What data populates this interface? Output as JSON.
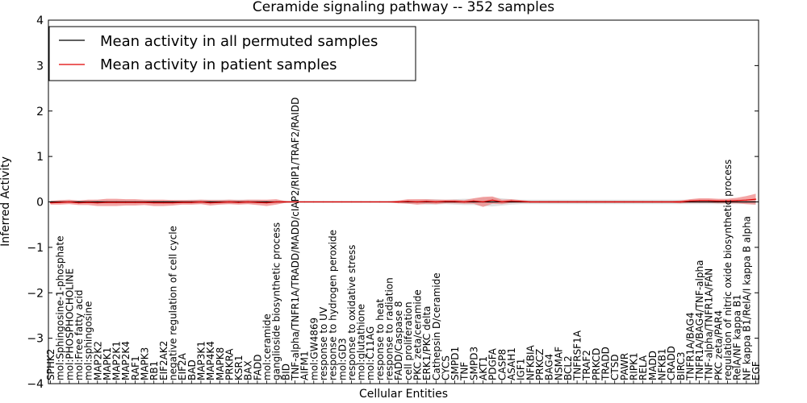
{
  "chart_data": {
    "type": "line",
    "title": "Ceramide signaling pathway -- 352 samples",
    "xlabel": "Cellular Entities",
    "ylabel": "Inferred Activity",
    "ylim": [
      -4,
      4
    ],
    "yticks": [
      -4,
      -3,
      -2,
      -1,
      0,
      1,
      2,
      3,
      4
    ],
    "grid": false,
    "legend_position": "top-left",
    "categories": [
      "SPHK2",
      "mol:Sphingosine-1-phosphate",
      "mol:PHOSPHOCHOLINE",
      "mol:Free fatty acid",
      "mol:sphingosine",
      "MAP2K2",
      "MAPK1",
      "MAP2K1",
      "MAP2K4",
      "RAF1",
      "MAPK3",
      "RB1",
      "EIF2AK2",
      "negative regulation of cell cycle",
      "EIF2A",
      "BAD",
      "MAP3K1",
      "MAP4K4",
      "MAPK8",
      "PRKRA",
      "KSR1",
      "BAX",
      "FADD",
      "mol:ceramide",
      "ganglioside biosynthetic process",
      "BID",
      "TNF-alpha/TNFR1A/TRADD/MADD/cIAP2/RIP1/TRAF2/RAIDD",
      "AIFM1",
      "mol:GW4869",
      "response to UV",
      "response to hydrogen peroxide",
      "mol:GD3",
      "response to oxidative stress",
      "mol:glutathione",
      "mol:C11AG",
      "response to heat",
      "response to radiation",
      "FADD/Caspase 8",
      "cell proliferation",
      "PKC zeta/ceramide",
      "ERK1/PKC delta",
      "Cathepsin D/ceramide",
      "CYCS",
      "SMPD1",
      "TNF",
      "SMPD3",
      "AKT1",
      "PDGFA",
      "CASP8",
      "ASAH1",
      "IGF1",
      "NFKBIA",
      "PRKCZ",
      "BAG4",
      "NSMAF",
      "BCL2",
      "TNFRSF1A",
      "TRAF2",
      "PRKCD",
      "TRADD",
      "CTSD",
      "PAWR",
      "RIPK1",
      "RELA",
      "MADD",
      "NFKB1",
      "CRADD",
      "BIRC3",
      "TNFR1A/BAG4",
      "TNFR1A/BAG4/TNF-alpha",
      "TNF-alpha/TNFR1A/FAN",
      "PKC zeta/PAR4",
      "regulation of nitric oxide biosynthetic process",
      "RelA/NF kappa B1",
      "NF kappa B1/RelA/I kappa B alpha",
      "EGF"
    ],
    "series": [
      {
        "name": "Mean activity in all permuted samples",
        "color": "#000000",
        "band_color": "#c8c8c8",
        "values": [
          0,
          0,
          0,
          0,
          0,
          0,
          0,
          0,
          0,
          0,
          0,
          0,
          0,
          0,
          0,
          0,
          0,
          0,
          0,
          0,
          0,
          0,
          0,
          0,
          0,
          0,
          0,
          0,
          0,
          0,
          0,
          0,
          0,
          0,
          0,
          0,
          0,
          0,
          0,
          0,
          0,
          0,
          0,
          0,
          0,
          0,
          0,
          0,
          0,
          0,
          0,
          0,
          0,
          0,
          0,
          0,
          0,
          0,
          0,
          0,
          0,
          0,
          0,
          0,
          0,
          0,
          0,
          0,
          0,
          0,
          0,
          0,
          0,
          0,
          0,
          0
        ],
        "band": [
          0.03,
          0.03,
          0.03,
          0.03,
          0.04,
          0.05,
          0.05,
          0.05,
          0.05,
          0.05,
          0.04,
          0.04,
          0.04,
          0.04,
          0.04,
          0.05,
          0.05,
          0.05,
          0.05,
          0.05,
          0.05,
          0.05,
          0.05,
          0.04,
          0.04,
          0.02,
          0.01,
          0.01,
          0.01,
          0.01,
          0.01,
          0.01,
          0.01,
          0.01,
          0.01,
          0.01,
          0.01,
          0.02,
          0.04,
          0.05,
          0.06,
          0.06,
          0.05,
          0.06,
          0.07,
          0.07,
          0.09,
          0.1,
          0.08,
          0.06,
          0.05,
          0.05,
          0.05,
          0.05,
          0.05,
          0.05,
          0.05,
          0.05,
          0.05,
          0.05,
          0.05,
          0.05,
          0.05,
          0.05,
          0.05,
          0.05,
          0.05,
          0.05,
          0.05,
          0.05,
          0.05,
          0.05,
          0.05,
          0.05,
          0.05,
          0.06
        ]
      },
      {
        "name": "Mean activity in patient samples",
        "color": "#e00000",
        "band_color": "#f08080",
        "values": [
          -0.02,
          -0.01,
          0.0,
          -0.02,
          -0.01,
          -0.02,
          -0.01,
          -0.01,
          -0.01,
          -0.01,
          -0.01,
          -0.02,
          -0.02,
          -0.02,
          -0.01,
          -0.01,
          0.0,
          -0.02,
          -0.01,
          0.0,
          -0.01,
          0.0,
          -0.01,
          -0.02,
          0.0,
          0.0,
          0.0,
          0.0,
          0.0,
          0.0,
          0.0,
          0.0,
          0.0,
          0.0,
          0.0,
          0.0,
          0.0,
          0.0,
          0.01,
          0.0,
          0.01,
          0.0,
          0.01,
          0.01,
          0.0,
          0.02,
          0.0,
          0.04,
          0.0,
          0.02,
          0.01,
          0.0,
          0.0,
          0.0,
          0.0,
          0.0,
          0.0,
          0.0,
          0.0,
          0.0,
          0.0,
          0.0,
          0.0,
          0.0,
          0.0,
          0.0,
          0.0,
          0.0,
          0.02,
          0.03,
          0.03,
          0.02,
          0.02,
          0.03,
          0.04,
          0.06
        ],
        "band": [
          0.04,
          0.05,
          0.05,
          0.05,
          0.06,
          0.07,
          0.08,
          0.08,
          0.07,
          0.07,
          0.06,
          0.07,
          0.07,
          0.06,
          0.05,
          0.05,
          0.05,
          0.06,
          0.05,
          0.05,
          0.05,
          0.05,
          0.06,
          0.07,
          0.06,
          0.02,
          0.01,
          0.01,
          0.01,
          0.01,
          0.01,
          0.01,
          0.01,
          0.01,
          0.01,
          0.01,
          0.01,
          0.03,
          0.05,
          0.06,
          0.05,
          0.05,
          0.04,
          0.04,
          0.04,
          0.06,
          0.11,
          0.08,
          0.05,
          0.04,
          0.03,
          0.02,
          0.02,
          0.02,
          0.02,
          0.02,
          0.02,
          0.02,
          0.02,
          0.02,
          0.02,
          0.02,
          0.02,
          0.02,
          0.02,
          0.02,
          0.02,
          0.03,
          0.04,
          0.05,
          0.05,
          0.05,
          0.05,
          0.06,
          0.09,
          0.12
        ]
      }
    ]
  }
}
